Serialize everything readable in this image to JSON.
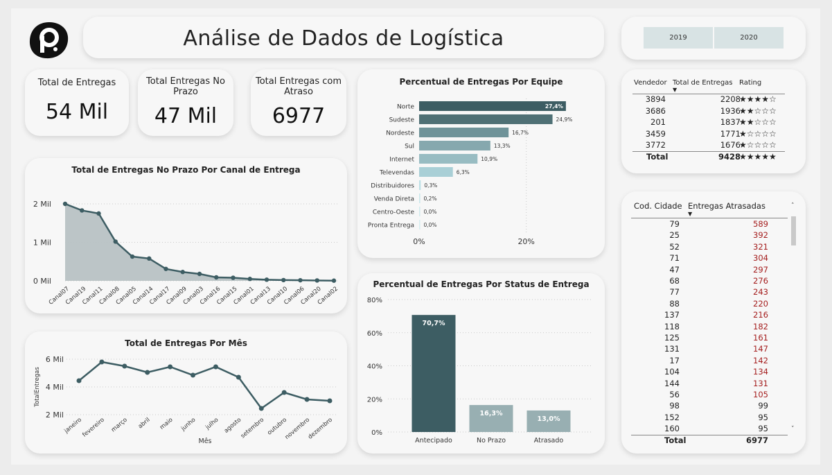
{
  "header": {
    "title": "Análise de Dados de Logística"
  },
  "years": [
    "2019",
    "2020"
  ],
  "kpis": [
    {
      "label": "Total de Entregas",
      "value": "54 Mil"
    },
    {
      "label": "Total Entregas No Prazo",
      "value": "47 Mil"
    },
    {
      "label": "Total Entregas com Atraso",
      "value": "6977"
    }
  ],
  "canal_chart": {
    "title": "Total de Entregas No Prazo Por Canal de Entrega",
    "y_ticks": [
      "2 Mil",
      "1 Mil",
      "0 Mil"
    ],
    "colors": {
      "line": "#3d5d63",
      "fill": "#b8c2c4"
    },
    "chart_data": {
      "type": "area",
      "title": "Total de Entregas No Prazo Por Canal de Entrega",
      "categories": [
        "Canal07",
        "Canal19",
        "Canal11",
        "Canal08",
        "Canal05",
        "Canal14",
        "Canal17",
        "Canal09",
        "Canal03",
        "Canal16",
        "Canal15",
        "Canal01",
        "Canal13",
        "Canal10",
        "Canal06",
        "Canal20",
        "Canal02"
      ],
      "values": [
        2000,
        1830,
        1750,
        1020,
        630,
        580,
        310,
        230,
        180,
        90,
        80,
        50,
        30,
        20,
        15,
        10,
        5
      ],
      "ylim": [
        0,
        2000
      ]
    }
  },
  "mes_chart": {
    "title": "Total de Entregas Por Mês",
    "xlabel": "Mês",
    "ylabel": "TotalEntregas",
    "y_ticks": [
      "6 Mil",
      "4 Mil",
      "2 Mil"
    ],
    "chart_data": {
      "type": "line",
      "title": "Total de Entregas Por Mês",
      "xlabel": "Mês",
      "ylabel": "TotalEntregas",
      "categories": [
        "janeiro",
        "fevereiro",
        "março",
        "abril",
        "maio",
        "junho",
        "julho",
        "agosto",
        "setembro",
        "outubro",
        "novembro",
        "dezembro"
      ],
      "values": [
        4450,
        5800,
        5500,
        5050,
        5450,
        4850,
        5450,
        4700,
        2450,
        3600,
        3100,
        3000
      ],
      "ylim": [
        2000,
        6000
      ]
    }
  },
  "equipe_chart": {
    "title": "Percentual de Entregas Por Equipe",
    "x_ticks": [
      "0%",
      "20%"
    ],
    "chart_data": {
      "type": "bar",
      "orientation": "horizontal",
      "title": "Percentual de Entregas Por Equipe",
      "categories": [
        "Norte",
        "Sudeste",
        "Nordeste",
        "Sul",
        "Internet",
        "Televendas",
        "Distribuidores",
        "Venda Direta",
        "Centro-Oeste",
        "Pronta Entrega"
      ],
      "values": [
        27.4,
        24.9,
        16.7,
        13.3,
        10.9,
        6.3,
        0.3,
        0.2,
        0.0,
        0.0
      ],
      "labels": [
        "27,4%",
        "24,9%",
        "16,7%",
        "13,3%",
        "10,9%",
        "6,3%",
        "0,3%",
        "0,2%",
        "0,0%",
        "0,0%"
      ],
      "colors": [
        "#3d5d63",
        "#4f7075",
        "#6f9399",
        "#86a8ae",
        "#98bcc2",
        "#a9cfd6",
        "#bde0e6",
        "#c8e6ea",
        "#d0eaee",
        "#d6edf0"
      ],
      "xlim": [
        0,
        30
      ]
    }
  },
  "status_chart": {
    "title": "Percentual de Entregas Por Status de Entrega",
    "y_ticks": [
      "80%",
      "60%",
      "40%",
      "20%",
      "0%"
    ],
    "chart_data": {
      "type": "bar",
      "title": "Percentual de Entregas Por Status de Entrega",
      "categories": [
        "Antecipado",
        "No Prazo",
        "Atrasado"
      ],
      "values": [
        70.7,
        16.3,
        13.0
      ],
      "labels": [
        "70,7%",
        "16,3%",
        "13,0%"
      ],
      "colors": [
        "#3d5d63",
        "#98afb2",
        "#98afb2"
      ],
      "ylim": [
        0,
        80
      ]
    }
  },
  "vendedor_table": {
    "headers": [
      "Vendedor",
      "Total de Entregas",
      "Rating"
    ],
    "rows": [
      {
        "vendedor": "3894",
        "total": "2208",
        "rating": "★★★★☆"
      },
      {
        "vendedor": "3686",
        "total": "1936",
        "rating": "★★☆☆☆"
      },
      {
        "vendedor": "201",
        "total": "1837",
        "rating": "★★☆☆☆"
      },
      {
        "vendedor": "3459",
        "total": "1771",
        "rating": "★☆☆☆☆"
      },
      {
        "vendedor": "3772",
        "total": "1676",
        "rating": "★☆☆☆☆"
      }
    ],
    "total": {
      "label": "Total",
      "value": "9428",
      "rating": "★★★★★"
    }
  },
  "cidade_table": {
    "headers": [
      "Cod. Cidade",
      "Entregas Atrasadas"
    ],
    "rows": [
      [
        "79",
        "589"
      ],
      [
        "25",
        "392"
      ],
      [
        "52",
        "321"
      ],
      [
        "71",
        "304"
      ],
      [
        "47",
        "297"
      ],
      [
        "68",
        "276"
      ],
      [
        "77",
        "243"
      ],
      [
        "88",
        "220"
      ],
      [
        "137",
        "216"
      ],
      [
        "118",
        "182"
      ],
      [
        "125",
        "161"
      ],
      [
        "131",
        "147"
      ],
      [
        "17",
        "142"
      ],
      [
        "104",
        "134"
      ],
      [
        "144",
        "131"
      ],
      [
        "56",
        "105"
      ],
      [
        "98",
        "99"
      ],
      [
        "152",
        "95"
      ],
      [
        "160",
        "95"
      ]
    ],
    "total": {
      "label": "Total",
      "value": "6977"
    },
    "colors": {
      "value": "#a41d1d",
      "value_light": "#222222"
    }
  }
}
